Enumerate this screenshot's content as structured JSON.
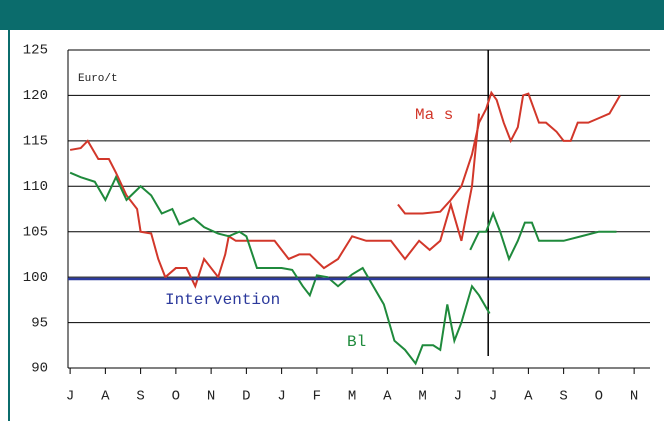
{
  "chart_data": {
    "type": "line",
    "y_unit_label": "Euro/t",
    "xlim": [
      -0.06,
      16.45
    ],
    "xticks": [
      {
        "value": 0,
        "label": "J"
      },
      {
        "value": 1,
        "label": "A"
      },
      {
        "value": 2,
        "label": "S"
      },
      {
        "value": 3,
        "label": "O"
      },
      {
        "value": 4,
        "label": "N"
      },
      {
        "value": 5,
        "label": "D"
      },
      {
        "value": 6,
        "label": "J"
      },
      {
        "value": 7,
        "label": "F"
      },
      {
        "value": 8,
        "label": "M"
      },
      {
        "value": 9,
        "label": "A"
      },
      {
        "value": 10,
        "label": "M"
      },
      {
        "value": 11,
        "label": "J"
      },
      {
        "value": 12,
        "label": "J"
      },
      {
        "value": 13,
        "label": "A"
      },
      {
        "value": 14,
        "label": "S"
      },
      {
        "value": 15,
        "label": "O"
      },
      {
        "value": 16,
        "label": "N"
      }
    ],
    "ylim": [
      90,
      125
    ],
    "yticks": [
      90,
      95,
      100,
      105,
      110,
      115,
      120,
      125
    ],
    "grid": true,
    "marker_x": 11.86,
    "series": [
      {
        "name": "Ma s",
        "color": "#d2372a",
        "x": [
          0,
          0.3,
          0.5,
          0.8,
          1.1,
          1.3,
          1.6,
          1.9,
          2.0,
          2.3,
          2.5,
          2.7,
          3.0,
          3.3,
          3.55,
          3.8,
          4.0,
          4.2,
          4.4,
          4.5,
          4.7,
          5.0,
          5.5,
          5.8,
          6.2,
          6.5,
          6.8,
          7.2,
          7.6,
          8.0,
          8.4,
          8.7,
          9.1,
          9.5,
          9.9,
          10.2,
          10.5,
          10.8,
          11.1,
          11.4,
          11.6
        ],
        "values": [
          114,
          114.2,
          115,
          113,
          113,
          111.5,
          109,
          107.5,
          105,
          104.8,
          102,
          100,
          101,
          101,
          99,
          102,
          101,
          100,
          102.5,
          104.5,
          104,
          104,
          104,
          104,
          102,
          102.5,
          102.5,
          101,
          102,
          104.5,
          104,
          104,
          104,
          102,
          104,
          103,
          104,
          108,
          104,
          110,
          118
        ]
      },
      {
        "name": "Ma s",
        "color": "#d2372a",
        "x": [
          9.3,
          9.5,
          10.0,
          10.5,
          10.8,
          11.1,
          11.4,
          11.6,
          11.8,
          11.95,
          12.1,
          12.3,
          12.5,
          12.7,
          12.85,
          13.0,
          13.3,
          13.5,
          13.8,
          14.0,
          14.2,
          14.4,
          14.7,
          15.0,
          15.3,
          15.6
        ],
        "values": [
          108,
          107,
          107,
          107.2,
          108.5,
          110,
          113.5,
          117,
          118.5,
          120.3,
          119.5,
          117,
          115,
          116.5,
          120,
          120.2,
          117,
          117,
          116,
          115,
          115,
          117,
          117,
          117.5,
          118,
          120
        ]
      },
      {
        "name": "Bl",
        "color": "#1f8a3c",
        "x": [
          0,
          0.3,
          0.7,
          1.0,
          1.3,
          1.6,
          2.0,
          2.3,
          2.6,
          2.9,
          3.1,
          3.5,
          3.8,
          4.2,
          4.5,
          4.8,
          5.0,
          5.3,
          6.0,
          6.3,
          6.6,
          6.8,
          7.0,
          7.3,
          7.6,
          8.0,
          8.3,
          8.6,
          8.9,
          9.2,
          9.5,
          9.8,
          10.0,
          10.3,
          10.5,
          10.7,
          10.9,
          11.1,
          11.4,
          11.6,
          11.9
        ],
        "values": [
          111.5,
          111,
          110.5,
          108.5,
          111,
          108.5,
          110,
          109,
          107,
          107.5,
          105.8,
          106.5,
          105.5,
          104.8,
          104.5,
          105,
          104.5,
          101,
          101,
          100.8,
          99,
          98,
          100.2,
          100,
          99,
          100.3,
          101,
          99,
          97,
          93,
          92,
          90.5,
          92.5,
          92.5,
          92,
          97,
          93,
          95,
          99,
          98,
          96
        ]
      },
      {
        "name": "Bl",
        "color": "#1f8a3c",
        "x": [
          11.35,
          11.6,
          11.8,
          12.0,
          12.2,
          12.45,
          12.7,
          12.9,
          13.1,
          13.3,
          13.5,
          14.0,
          14.5,
          15.0,
          15.3,
          15.5
        ],
        "values": [
          103,
          105,
          105,
          107,
          105,
          102,
          104,
          106,
          106,
          104,
          104,
          104,
          104.5,
          105,
          105,
          105
        ]
      },
      {
        "name": "Intervention",
        "color": "#2c3a9c",
        "x": [
          -0.06,
          16.45
        ],
        "values": [
          99.8,
          99.8
        ]
      }
    ]
  }
}
